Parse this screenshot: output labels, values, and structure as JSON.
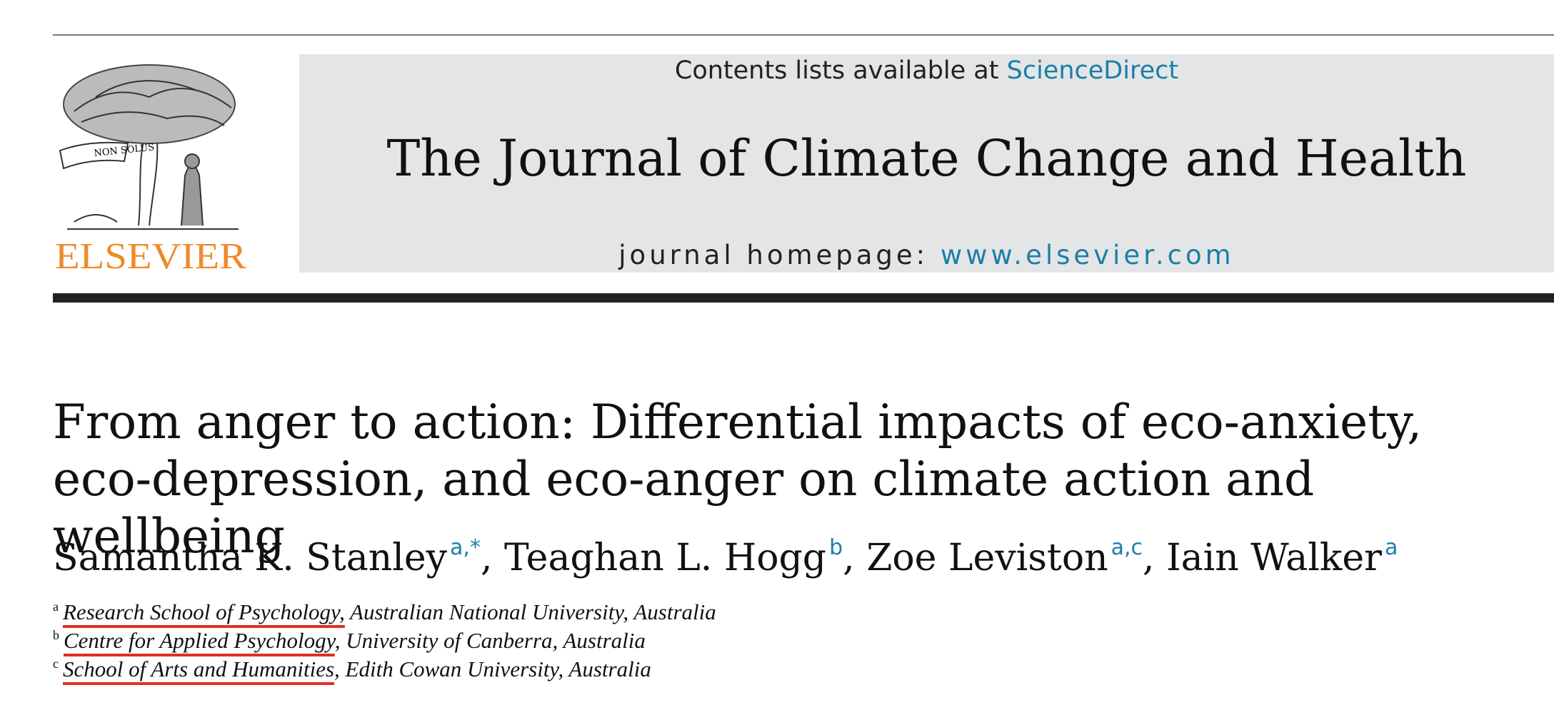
{
  "header": {
    "contents_prefix": "Contents lists available at",
    "sciencedirect": "ScienceDirect",
    "journal_title": "The Journal of Climate Change and Health",
    "homepage_prefix": "journal homepage:",
    "homepage_link": "www.elsevier.com"
  },
  "logo": {
    "motto": "NON SOLUS",
    "publisher": "ELSEVIER"
  },
  "article": {
    "title_lines": [
      "From anger to action: Differential impacts of eco-anxiety,",
      "eco-depression, and eco-anger on climate action and wellbeing"
    ],
    "author_separator": ", ",
    "authors": [
      {
        "name": "Samantha K. Stanley",
        "sup": "a,*"
      },
      {
        "name": "Teaghan L. Hogg",
        "sup": "b"
      },
      {
        "name": "Zoe Leviston",
        "sup": "a,c"
      },
      {
        "name": "Iain Walker",
        "sup": "a"
      }
    ],
    "affiliations": [
      {
        "sup": "a",
        "unit": "Research School of Psychology,",
        "rest": " Australian National University, Australia"
      },
      {
        "sup": "b",
        "unit": "Centre for Applied Psychology",
        "rest": ", University of Canberra, Australia"
      },
      {
        "sup": "c",
        "unit": "School of Arts and Humanities",
        "rest": ", Edith Cowan University, Australia"
      }
    ]
  }
}
